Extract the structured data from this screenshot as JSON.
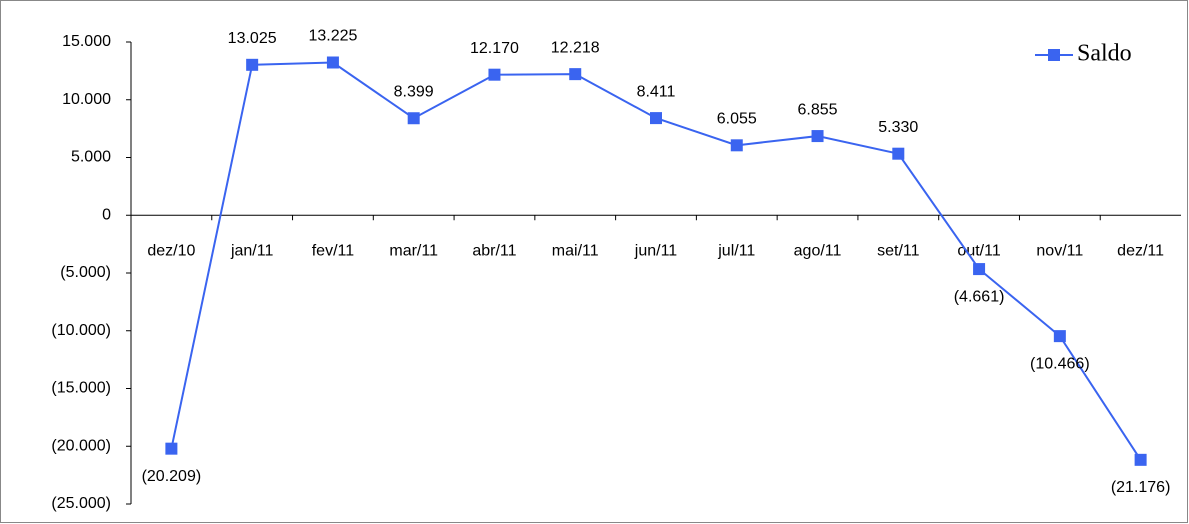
{
  "chart_data": {
    "type": "line",
    "categories": [
      "dez/10",
      "jan/11",
      "fev/11",
      "mar/11",
      "abr/11",
      "mai/11",
      "jun/11",
      "jul/11",
      "ago/11",
      "set/11",
      "out/11",
      "nov/11",
      "dez/11"
    ],
    "series": [
      {
        "name": "Saldo",
        "color": "#3a64f0",
        "values": [
          -20209,
          13025,
          13225,
          8399,
          12170,
          12218,
          8411,
          6055,
          6855,
          5330,
          -4661,
          -10466,
          -21176
        ],
        "value_labels": [
          "(20.209)",
          "13.025",
          "13.225",
          "8.399",
          "12.170",
          "12.218",
          "8.411",
          "6.055",
          "6.855",
          "5.330",
          "(4.661)",
          "(10.466)",
          "(21.176)"
        ]
      }
    ],
    "ylim": [
      -25000,
      15000
    ],
    "yticks": [
      {
        "value": 15000,
        "label": "15.000"
      },
      {
        "value": 10000,
        "label": "10.000"
      },
      {
        "value": 5000,
        "label": "5.000"
      },
      0,
      {
        "value": -5000,
        "label": "(5.000)"
      },
      {
        "value": -10000,
        "label": "(10.000)"
      },
      {
        "value": -15000,
        "label": "(15.000)"
      },
      {
        "value": -20000,
        "label": "(20.000)"
      },
      {
        "value": -25000,
        "label": "(25.000)"
      }
    ],
    "grid": false,
    "legend": "upper right"
  }
}
